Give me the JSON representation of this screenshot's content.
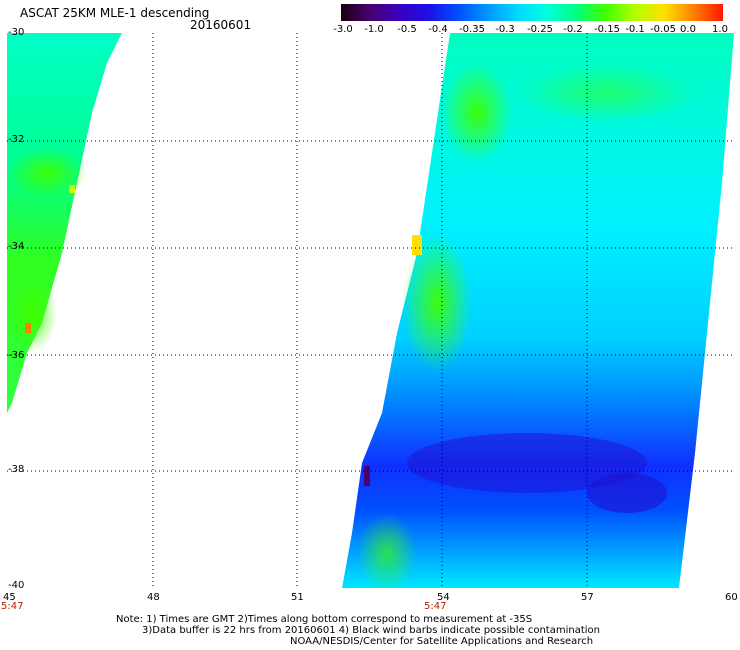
{
  "header": {
    "title": "ASCAT 25KM MLE-1 descending",
    "date": "20160601"
  },
  "colorbar": {
    "labels": [
      "-3.0",
      "-1.0",
      "-0.5",
      "-0.4",
      "-0.35",
      "-0.3",
      "-0.25",
      "-0.2",
      "-0.15",
      "-0.1",
      "-0.05",
      "0.0",
      "1.0"
    ],
    "colors": [
      "#1a0010",
      "#4a0070",
      "#3a00c0",
      "#1c10e8",
      "#0050ff",
      "#0098ff",
      "#00d8ff",
      "#00ffe0",
      "#00ff80",
      "#40ff00",
      "#b0ff00",
      "#ffe000",
      "#ff8000",
      "#ff1800"
    ]
  },
  "axes": {
    "lat_labels": [
      "-30",
      "-32",
      "-34",
      "-36",
      "-38",
      "-40"
    ],
    "lon_labels": [
      "45",
      "48",
      "51",
      "54",
      "57",
      "60"
    ],
    "time_labels": [
      "5:47",
      "5:47"
    ]
  },
  "map": {
    "lat_range": [
      -40,
      -30
    ],
    "lon_range": [
      45,
      60
    ],
    "grid": true
  },
  "notes": {
    "line1": "Note: 1) Times are GMT 2)Times along bottom correspond to measurement at -35S",
    "line2": "3)Data buffer is 22 hrs from 20160601 4) Black wind barbs indicate possible contamination",
    "line3": "NOAA/NESDIS/Center for Satellite Applications and Research"
  }
}
